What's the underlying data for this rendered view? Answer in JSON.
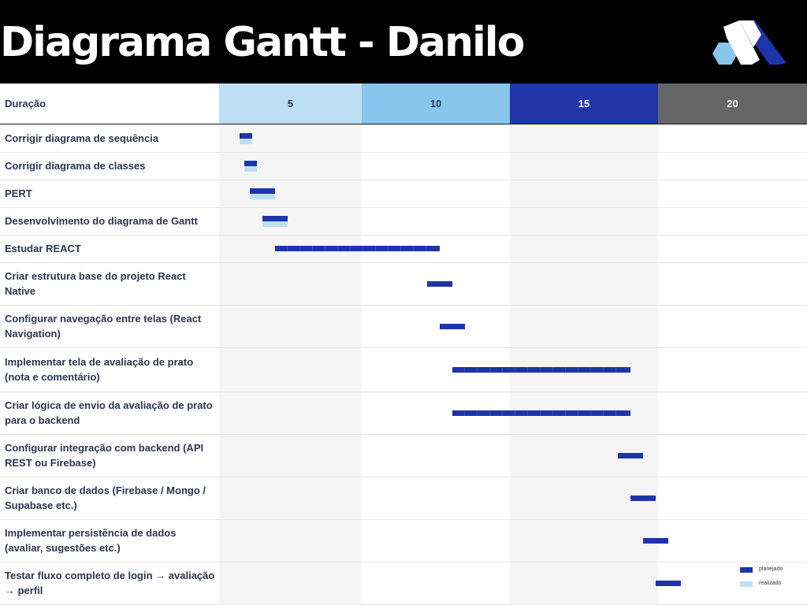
{
  "title": "Diagrama Gantt - Danilo",
  "logo_icon": "hexagon-m-logo-icon",
  "colors": {
    "header_bg": "#000000",
    "planned": "#1d35a8",
    "actual": "#bcdff4",
    "col_5": "#bcdff4",
    "col_10": "#88c6ec",
    "col_15": "#1f35a8",
    "col_20": "#666666",
    "grid": "#f5f5f5",
    "label_text": "#2b3550"
  },
  "chart_data": {
    "type": "gantt",
    "title": "Diagrama Gantt - Danilo",
    "xlabel": "Duração",
    "columns": [
      "5",
      "10",
      "15",
      "20"
    ],
    "legend": {
      "placement": "bottom-right",
      "items": [
        "planejado",
        "realizado"
      ]
    },
    "tasks": [
      {
        "name": "Corrigir diagrama de sequência",
        "planned": [
          0.8,
          1.3
        ],
        "actual": [
          0.8,
          1.3
        ]
      },
      {
        "name": "Corrigir diagrama de classes",
        "planned": [
          1.0,
          1.5
        ],
        "actual": [
          1.0,
          1.5
        ]
      },
      {
        "name": "PERT",
        "planned": [
          1.2,
          2.2
        ],
        "actual": [
          1.2,
          2.2
        ]
      },
      {
        "name": "Desenvolvimento do diagrama de Gantt",
        "planned": [
          1.7,
          2.7
        ],
        "actual": [
          1.7,
          2.7
        ]
      },
      {
        "name": "Estudar REACT",
        "planned": [
          2.2,
          8.7
        ]
      },
      {
        "name": "Criar estrutura base do projeto React Native",
        "planned": [
          8.2,
          9.2
        ]
      },
      {
        "name": "Configurar navegação entre telas (React Navigation)",
        "planned": [
          8.7,
          9.7
        ]
      },
      {
        "name": "Implementar tela de avaliação de prato (nota e comentário)",
        "planned": [
          9.2,
          16.2
        ]
      },
      {
        "name": "Criar lógica de envio da avaliação de prato para o backend",
        "planned": [
          9.2,
          16.2
        ]
      },
      {
        "name": "Configurar integração com backend (API REST ou Firebase)",
        "planned": [
          15.7,
          16.7
        ]
      },
      {
        "name": "Criar banco de dados (Firebase / Mongo / Supabase etc.)",
        "planned": [
          16.2,
          17.2
        ]
      },
      {
        "name": "Implementar persistência de dados (avaliar, sugestões etc.)",
        "planned": [
          16.7,
          17.7
        ]
      },
      {
        "name": "Testar fluxo completo de login → avaliação → perfil",
        "planned": [
          17.2,
          18.2
        ]
      }
    ]
  }
}
